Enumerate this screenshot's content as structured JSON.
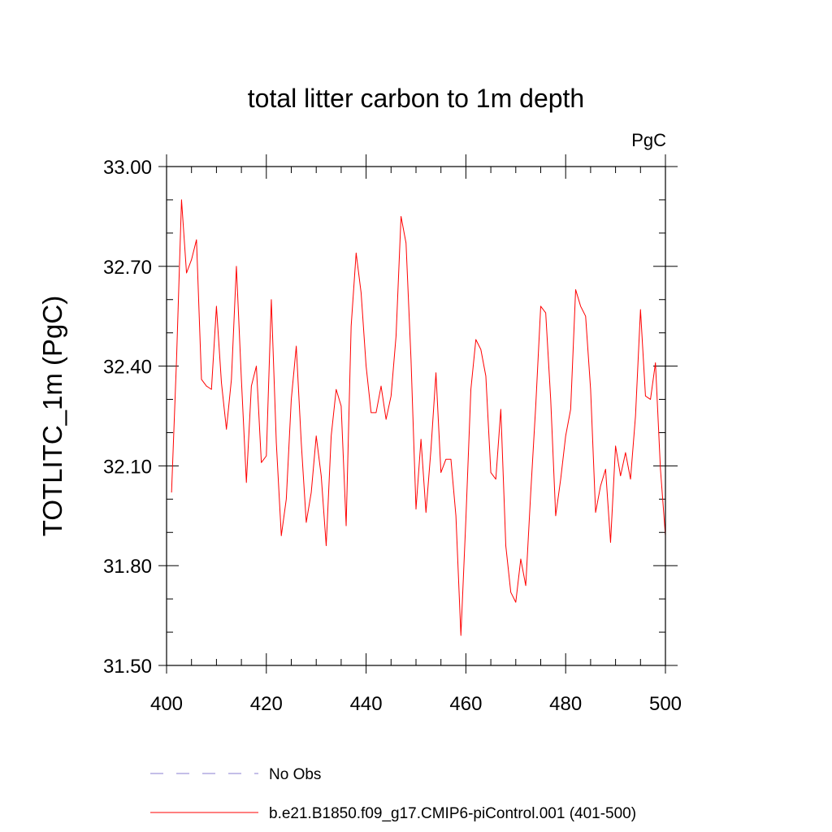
{
  "chart_data": {
    "type": "line",
    "title": "total litter carbon to 1m depth",
    "units_label": "PgC",
    "ylabel": "TOTLITC_1m  (PgC)",
    "xlabel": "",
    "xlim": [
      400,
      500
    ],
    "ylim": [
      31.5,
      33.0
    ],
    "x_ticks": [
      400,
      420,
      440,
      460,
      480,
      500
    ],
    "x_tick_labels": [
      "400",
      "420",
      "440",
      "460",
      "480",
      "500"
    ],
    "y_ticks": [
      31.5,
      31.8,
      32.1,
      32.4,
      32.7,
      33.0
    ],
    "y_tick_labels": [
      "31.50",
      "31.80",
      "32.10",
      "32.40",
      "32.70",
      "33.00"
    ],
    "x_minor_step": 5,
    "y_minor_step": 0.1,
    "series": [
      {
        "name": "b.e21.B1850.f09_g17.CMIP6-piControl.001 (401-500)",
        "color": "#ff0000",
        "x_start": 401,
        "x_step": 1,
        "values": [
          32.02,
          32.42,
          32.9,
          32.68,
          32.72,
          32.78,
          32.36,
          32.34,
          32.33,
          32.58,
          32.35,
          32.21,
          32.36,
          32.7,
          32.36,
          32.05,
          32.34,
          32.4,
          32.11,
          32.13,
          32.6,
          32.17,
          31.89,
          32.0,
          32.3,
          32.46,
          32.17,
          31.93,
          32.02,
          32.19,
          32.07,
          31.86,
          32.19,
          32.33,
          32.28,
          31.92,
          32.52,
          32.74,
          32.62,
          32.4,
          32.26,
          32.26,
          32.34,
          32.24,
          32.31,
          32.49,
          32.85,
          32.77,
          32.42,
          31.97,
          32.18,
          31.96,
          32.15,
          32.38,
          32.08,
          32.12,
          32.12,
          31.95,
          31.59,
          31.94,
          32.33,
          32.48,
          32.45,
          32.37,
          32.08,
          32.06,
          32.27,
          31.86,
          31.72,
          31.69,
          31.82,
          31.74,
          32.02,
          32.28,
          32.58,
          32.56,
          32.3,
          31.95,
          32.06,
          32.19,
          32.27,
          32.63,
          32.58,
          32.55,
          32.33,
          31.96,
          32.04,
          32.09,
          31.87,
          32.16,
          32.07,
          32.14,
          32.06,
          32.25,
          32.57,
          32.31,
          32.3,
          32.41,
          32.09,
          31.89
        ]
      }
    ],
    "legend": {
      "placement": "bottom-left",
      "entries": [
        {
          "label": "No Obs",
          "color": "#8a7fd0",
          "style": "dashed"
        },
        {
          "label": "b.e21.B1850.f09_g17.CMIP6-piControl.001 (401-500)",
          "color": "#ff0000",
          "style": "solid"
        }
      ]
    }
  }
}
